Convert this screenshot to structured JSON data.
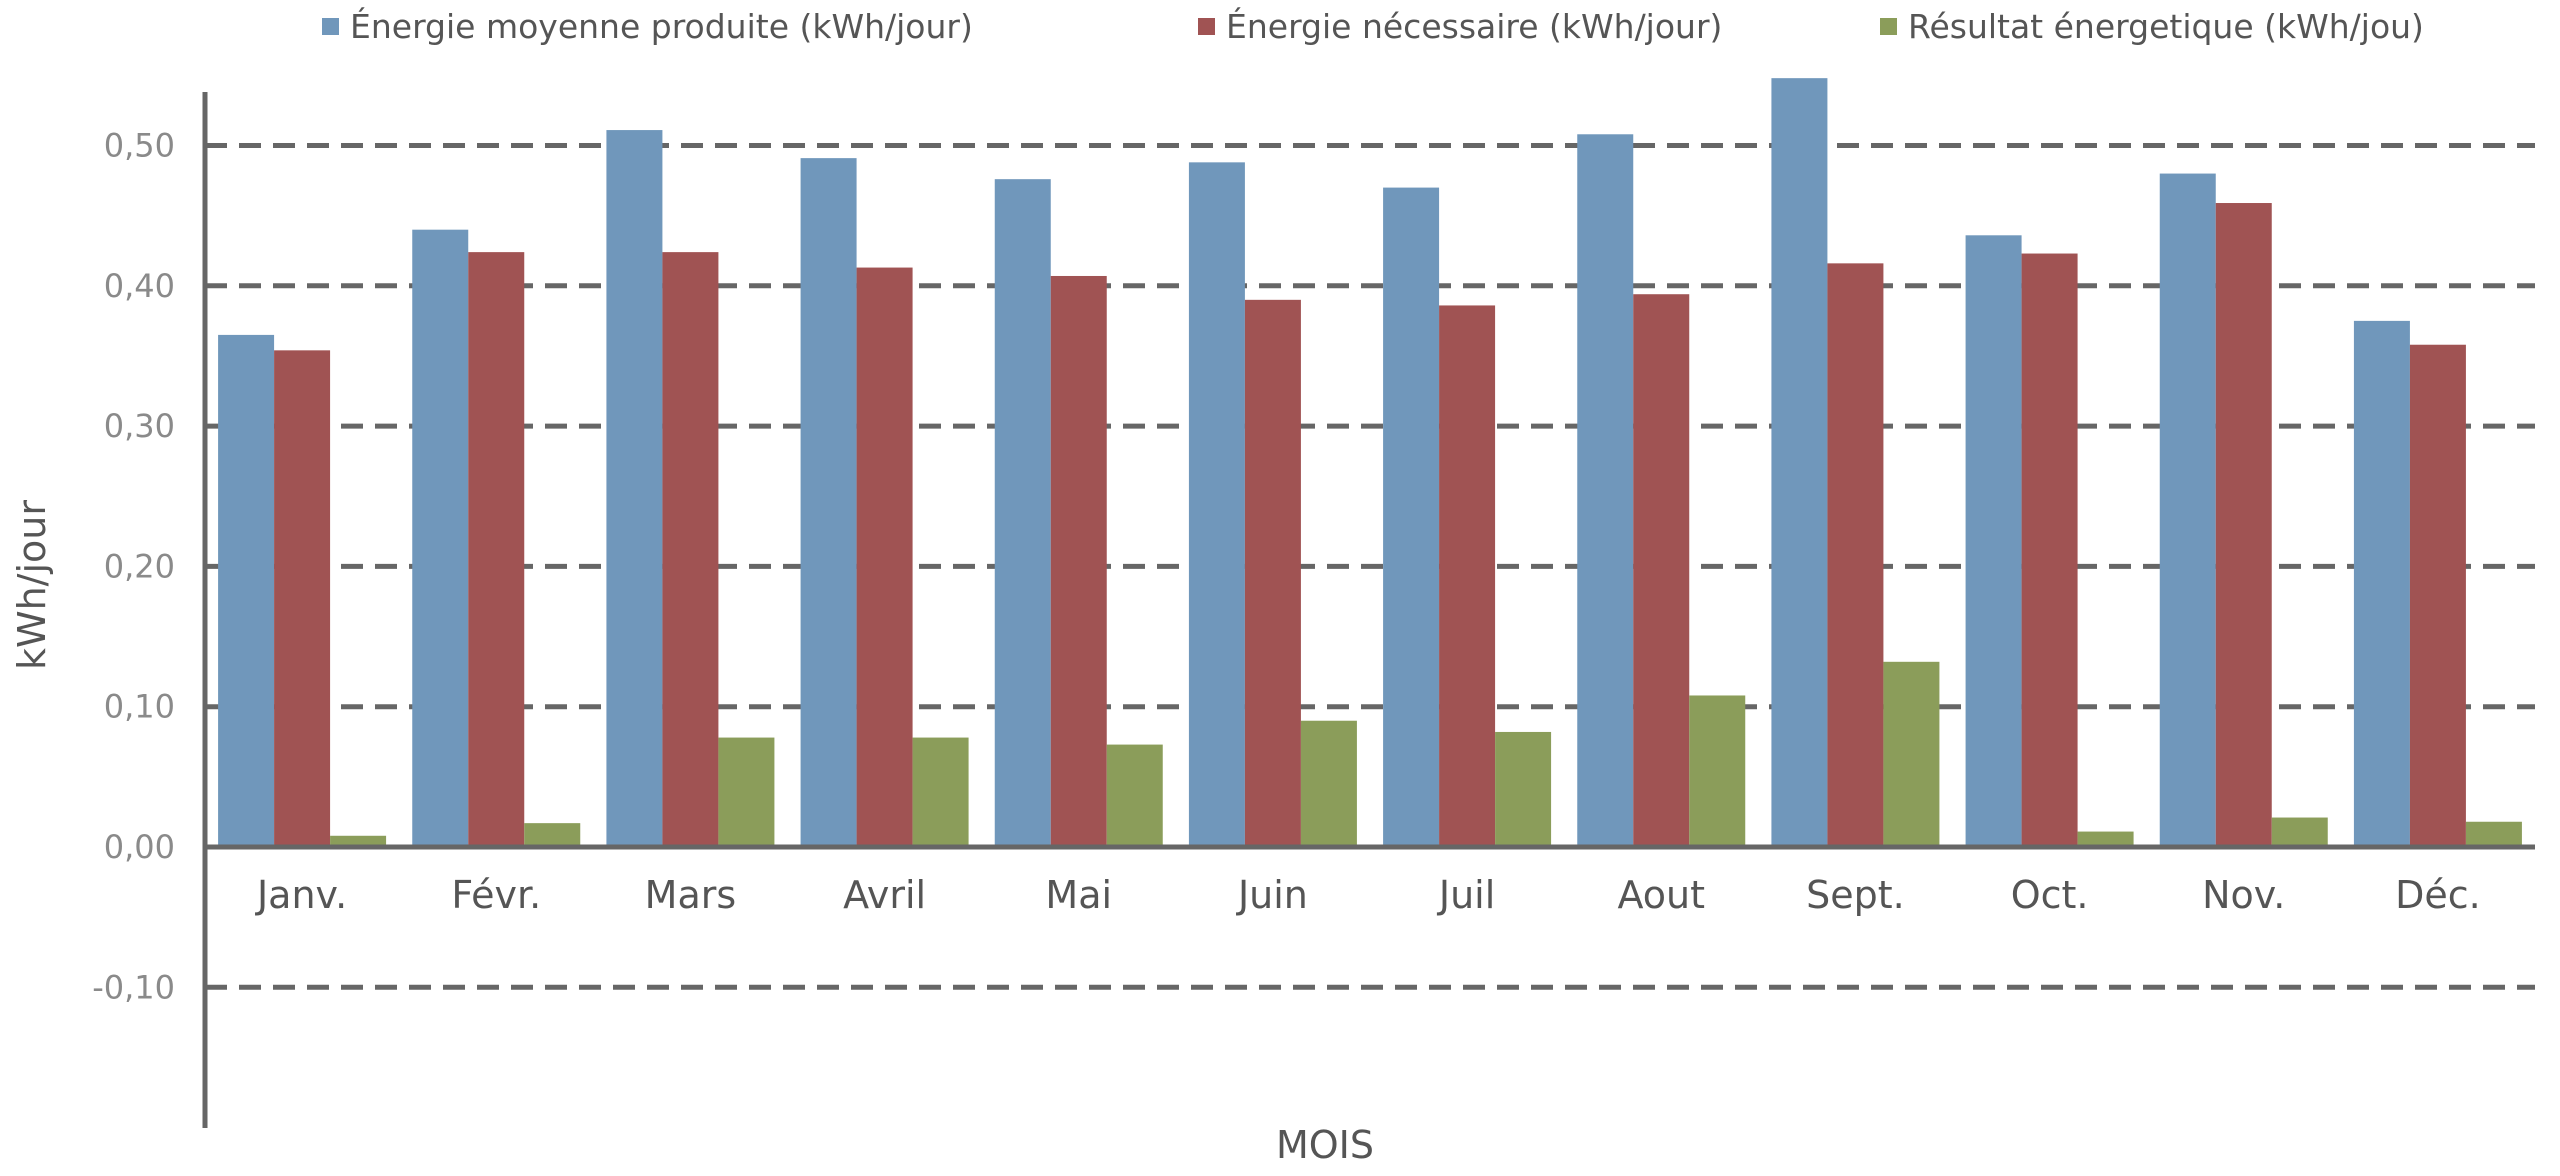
{
  "chart_data": {
    "type": "bar",
    "xlabel": "MOIS",
    "ylabel": "kWh/jour",
    "ylim": [
      -0.2,
      0.55
    ],
    "yticks": [
      -0.1,
      0.0,
      0.1,
      0.2,
      0.3,
      0.4,
      0.5
    ],
    "ytick_labels": [
      "-0,10",
      "0,00",
      "0,10",
      "0,20",
      "0,30",
      "0,40",
      "0,50"
    ],
    "grid": "horizontal-dashed",
    "legend_position": "top",
    "categories": [
      "Janv.",
      "Févr.",
      "Mars",
      "Avril",
      "Mai",
      "Juin",
      "Juil",
      "Aout",
      "Sept.",
      "Oct.",
      "Nov.",
      "Déc."
    ],
    "series": [
      {
        "name": "Énergie moyenne produite (kWh/jour)",
        "color": "#7097bb",
        "values": [
          0.365,
          0.44,
          0.511,
          0.491,
          0.476,
          0.488,
          0.47,
          0.508,
          0.548,
          0.436,
          0.48,
          0.375
        ]
      },
      {
        "name": "Énergie nécessaire (kWh/jour)",
        "color": "#a05353",
        "values": [
          0.354,
          0.424,
          0.424,
          0.413,
          0.407,
          0.39,
          0.386,
          0.394,
          0.416,
          0.423,
          0.459,
          0.358
        ]
      },
      {
        "name": "Résultat énergetique (kWh/jou)",
        "color": "#8b9d5a",
        "values": [
          0.008,
          0.017,
          0.078,
          0.078,
          0.073,
          0.09,
          0.082,
          0.108,
          0.132,
          0.011,
          0.021,
          0.018
        ]
      }
    ]
  }
}
